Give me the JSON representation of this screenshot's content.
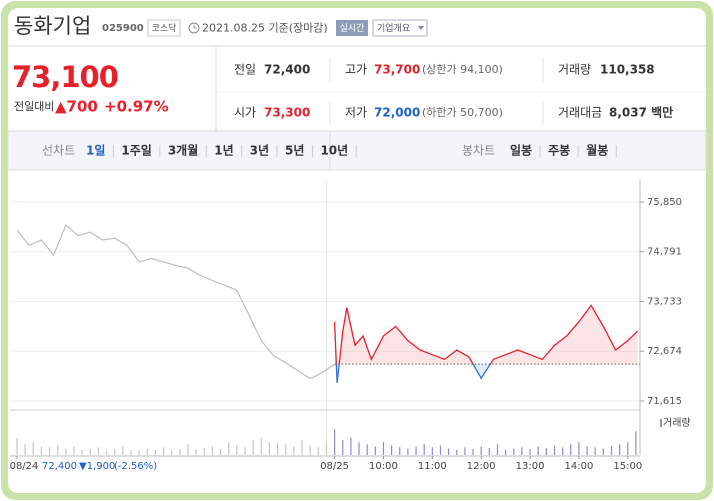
{
  "header": {
    "title": "동화기업",
    "code": "025900",
    "market": "코스닥",
    "date": "2021.08.25 기준(장마감)",
    "realtime": "실시간",
    "menu": "기업개요"
  },
  "quote": {
    "price": "73,100",
    "change_label": "전일대비",
    "change": "▲700",
    "change_rate": "+0.97%",
    "rows": [
      [
        {
          "label": "전일",
          "value": "72,400"
        },
        {
          "label": "고가",
          "value": "73,700",
          "limit": "(상한가 94,100)"
        },
        {
          "label": "거래량",
          "value": "110,358"
        }
      ],
      [
        {
          "label": "시가",
          "value": "73,300"
        },
        {
          "label": "저가",
          "value": "72,000",
          "limit": "(하한가 50,700)"
        },
        {
          "label": "거래대금",
          "value": "8,037 백만"
        }
      ]
    ]
  },
  "tabs": {
    "line_label": "선차트",
    "line_items": [
      "1일",
      "1주일",
      "3개월",
      "1년",
      "3년",
      "5년",
      "10년"
    ],
    "candle_label": "봉차트",
    "candle_items": [
      "일봉",
      "주봉",
      "월봉"
    ]
  },
  "chart_data": {
    "type": "line",
    "xlim": [
      0,
      765
    ],
    "ylim": [
      71423,
      76318
    ],
    "xticks": [
      {
        "value": 0,
        "label": "08/24"
      },
      {
        "value": 390,
        "label": "08/25"
      },
      {
        "value": 450,
        "label": "10:00"
      },
      {
        "value": 510,
        "label": "11:00"
      },
      {
        "value": 570,
        "label": "12:00"
      },
      {
        "value": 630,
        "label": "13:00"
      },
      {
        "value": 690,
        "label": "14:00"
      },
      {
        "value": 750,
        "label": "15:00"
      }
    ],
    "yticks": [
      {
        "value": 75850,
        "label": "75,850"
      },
      {
        "value": 74791,
        "label": "74,791"
      },
      {
        "value": 73733,
        "label": "73,733"
      },
      {
        "value": 72674,
        "label": "72,674"
      },
      {
        "value": 71615,
        "label": "71,615"
      }
    ],
    "grid": true,
    "baseline": 72400,
    "series": [
      {
        "color": "#bdbdbd",
        "x": [
          0,
          15,
          30,
          45,
          60,
          75,
          90,
          105,
          120,
          135,
          150,
          165,
          180,
          195,
          210,
          225,
          240,
          255,
          270,
          285,
          300,
          315,
          330,
          345,
          360,
          375,
          390
        ],
        "values": [
          75250,
          74930,
          75040,
          74720,
          75360,
          75140,
          75210,
          75040,
          75080,
          74930,
          74570,
          74650,
          74570,
          74500,
          74440,
          74290,
          74180,
          74080,
          73970,
          73440,
          72900,
          72580,
          72430,
          72260,
          72090,
          72220,
          72400
        ]
      },
      {
        "color": "#e8202a",
        "below_color": "#2f6fd8",
        "x": [
          390,
          393,
          400,
          405,
          415,
          425,
          435,
          450,
          465,
          480,
          495,
          510,
          525,
          540,
          555,
          570,
          585,
          600,
          615,
          630,
          645,
          660,
          675,
          690,
          705,
          720,
          735,
          750,
          762
        ],
        "values": [
          73300,
          72000,
          73100,
          73600,
          72800,
          73000,
          72500,
          73000,
          73200,
          72900,
          72700,
          72600,
          72500,
          72700,
          72550,
          72100,
          72500,
          72600,
          72700,
          72600,
          72500,
          72800,
          73000,
          73300,
          73650,
          73200,
          72700,
          72900,
          73100
        ]
      }
    ],
    "volume": {
      "label": "거래량",
      "ylim": [
        0,
        100
      ],
      "series": [
        {
          "color": "#c4c4c4",
          "x": [
            0,
            10,
            20,
            30,
            40,
            50,
            60,
            70,
            80,
            90,
            100,
            110,
            120,
            130,
            140,
            150,
            160,
            170,
            180,
            190,
            200,
            210,
            220,
            230,
            240,
            250,
            260,
            270,
            280,
            290,
            300,
            310,
            320,
            330,
            340,
            350,
            360,
            370,
            380
          ],
          "values": [
            40,
            25,
            30,
            20,
            18,
            22,
            15,
            20,
            12,
            15,
            18,
            10,
            14,
            20,
            12,
            10,
            15,
            12,
            18,
            10,
            14,
            25,
            12,
            16,
            20,
            14,
            30,
            22,
            18,
            35,
            40,
            30,
            28,
            25,
            20,
            35,
            22,
            18,
            30
          ]
        },
        {
          "color": "#9486cf",
          "x": [
            390,
            400,
            410,
            420,
            430,
            440,
            450,
            460,
            470,
            480,
            490,
            500,
            510,
            520,
            530,
            540,
            550,
            560,
            570,
            580,
            590,
            600,
            610,
            620,
            630,
            640,
            650,
            660,
            670,
            680,
            690,
            700,
            710,
            720,
            730,
            740,
            750,
            760
          ],
          "values": [
            60,
            35,
            40,
            30,
            25,
            20,
            30,
            22,
            18,
            15,
            20,
            25,
            18,
            22,
            15,
            12,
            18,
            14,
            20,
            16,
            25,
            12,
            15,
            18,
            14,
            20,
            16,
            22,
            18,
            25,
            30,
            20,
            18,
            15,
            20,
            25,
            30,
            55
          ]
        }
      ]
    },
    "footer": {
      "price": "72,400",
      "change": "▼1,900",
      "rate": "(-2.56%)"
    }
  }
}
